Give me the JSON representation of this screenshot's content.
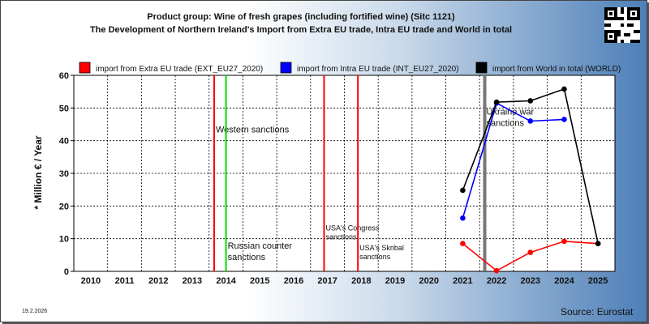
{
  "header": {
    "title_line1": "Product group: Wine of fresh grapes (including fortified wine) (Sitc 1121)",
    "title_line2": "The Development of Northern Ireland's Import from Extra EU trade, Intra EU trade and World in total"
  },
  "footer": {
    "date": "19.2.2026",
    "source": "Source: Eurostat"
  },
  "chart_data": {
    "type": "line",
    "ylabel": "* Million € / Year",
    "ylim": [
      0,
      60
    ],
    "yticks": [
      0,
      10,
      20,
      30,
      40,
      50,
      60
    ],
    "categories": [
      "2010",
      "2011",
      "2012",
      "2013",
      "2014",
      "2015",
      "2016",
      "2017",
      "2018",
      "2019",
      "2020",
      "2021",
      "2022",
      "2023",
      "2024",
      "2025"
    ],
    "grid": true,
    "legend_position": "top",
    "series": [
      {
        "name": "import from Extra EU trade (EXT_EU27_2020)",
        "color": "#ff0000",
        "values": [
          null,
          null,
          null,
          null,
          null,
          null,
          null,
          null,
          null,
          null,
          null,
          8.5,
          0.2,
          5.8,
          9.2,
          8.5
        ]
      },
      {
        "name": "import from Intra EU trade (INT_EU27_2020)",
        "color": "#0000ff",
        "values": [
          null,
          null,
          null,
          null,
          null,
          null,
          null,
          null,
          null,
          null,
          null,
          16.3,
          51.5,
          46.0,
          46.5,
          null
        ]
      },
      {
        "name": "import from World in total (WORLD)",
        "color": "#000000",
        "values": [
          null,
          null,
          null,
          null,
          null,
          null,
          null,
          null,
          null,
          null,
          null,
          24.8,
          51.8,
          52.2,
          55.8,
          8.5
        ]
      }
    ],
    "events": [
      {
        "x": 2013.65,
        "color": "#ff0000",
        "label": [
          "Western sanctions"
        ],
        "label_y": 42.5,
        "small": false
      },
      {
        "x": 2014.0,
        "color": "#00dd00",
        "label": [
          "Russian counter",
          "sanctions"
        ],
        "label_y": 7.0,
        "small": false
      },
      {
        "x": 2016.9,
        "color": "#ff0000",
        "label": [
          "USA's Congress",
          "sanctions"
        ],
        "label_y": 12.5,
        "small": true
      },
      {
        "x": 2017.9,
        "color": "#ff0000",
        "label": [
          "USA's Skribal",
          "sanctions"
        ],
        "label_y": 6.5,
        "small": true
      },
      {
        "x": 2021.65,
        "color": "#777777",
        "label": [
          "Ukraine war",
          "sanctions"
        ],
        "label_y": 48.0,
        "small": false
      }
    ]
  }
}
